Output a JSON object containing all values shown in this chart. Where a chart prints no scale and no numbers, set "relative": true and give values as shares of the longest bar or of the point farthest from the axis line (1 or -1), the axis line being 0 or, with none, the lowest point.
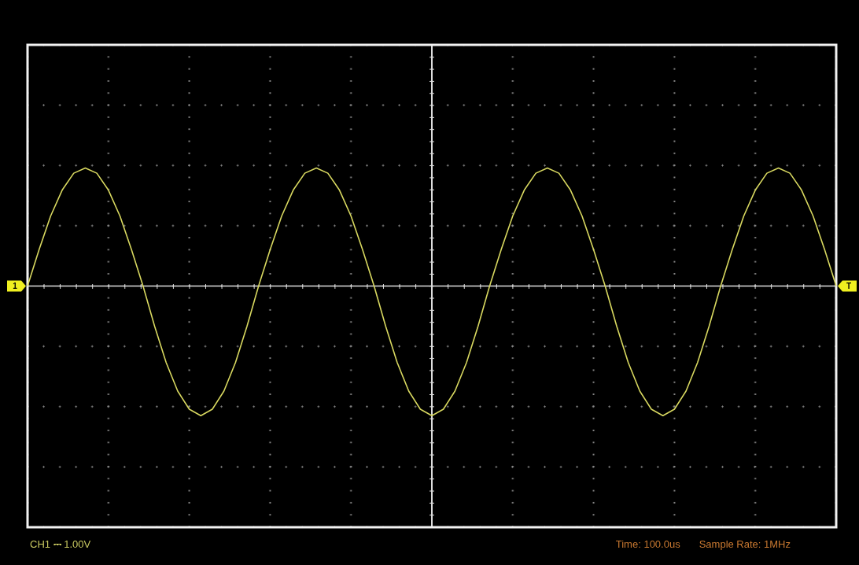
{
  "chart_data": {
    "type": "line",
    "relative": true,
    "legend": false,
    "marker": "none",
    "line_style": "solid",
    "categories": [
      null,
      null,
      null,
      null,
      null,
      null,
      null,
      null,
      null,
      null,
      null,
      null,
      null,
      null,
      null,
      null,
      null,
      null,
      null,
      null,
      null,
      null,
      null,
      null,
      null,
      null,
      null,
      null,
      null,
      null,
      null,
      null,
      null,
      null,
      null,
      null,
      null,
      null,
      null,
      null,
      null,
      null,
      null,
      null,
      null,
      null,
      null,
      null,
      null,
      null,
      null,
      null,
      null,
      null,
      null,
      null,
      null,
      null,
      null,
      null,
      null,
      null,
      null,
      null,
      null,
      null,
      null,
      null,
      null,
      null,
      null
    ],
    "series": [
      {
        "color": "#d8d860",
        "values": [
          0,
          0.28,
          0.54,
          0.74,
          0.87,
          0.91,
          0.87,
          0.74,
          0.54,
          0.28,
          0,
          -0.31,
          -0.59,
          -0.81,
          -0.95,
          -1,
          -0.95,
          -0.81,
          -0.59,
          -0.31,
          0,
          0.28,
          0.54,
          0.74,
          0.87,
          0.91,
          0.87,
          0.74,
          0.54,
          0.28,
          0,
          -0.31,
          -0.59,
          -0.81,
          -0.95,
          -1,
          -0.95,
          -0.81,
          -0.59,
          -0.31,
          0,
          0.28,
          0.54,
          0.74,
          0.87,
          0.91,
          0.87,
          0.74,
          0.54,
          0.28,
          0,
          -0.31,
          -0.59,
          -0.81,
          -0.95,
          -1,
          -0.95,
          -0.81,
          -0.59,
          -0.31,
          0,
          0.28,
          0.54,
          0.74,
          0.87,
          0.91,
          0.87,
          0.74,
          0.54,
          0.28,
          0
        ]
      }
    ],
    "annotations": [
      "CH1 ⎓ 1.00V",
      "Time: 100.0us",
      "Sample Rate: 1MHz",
      "1",
      "T"
    ]
  }
}
